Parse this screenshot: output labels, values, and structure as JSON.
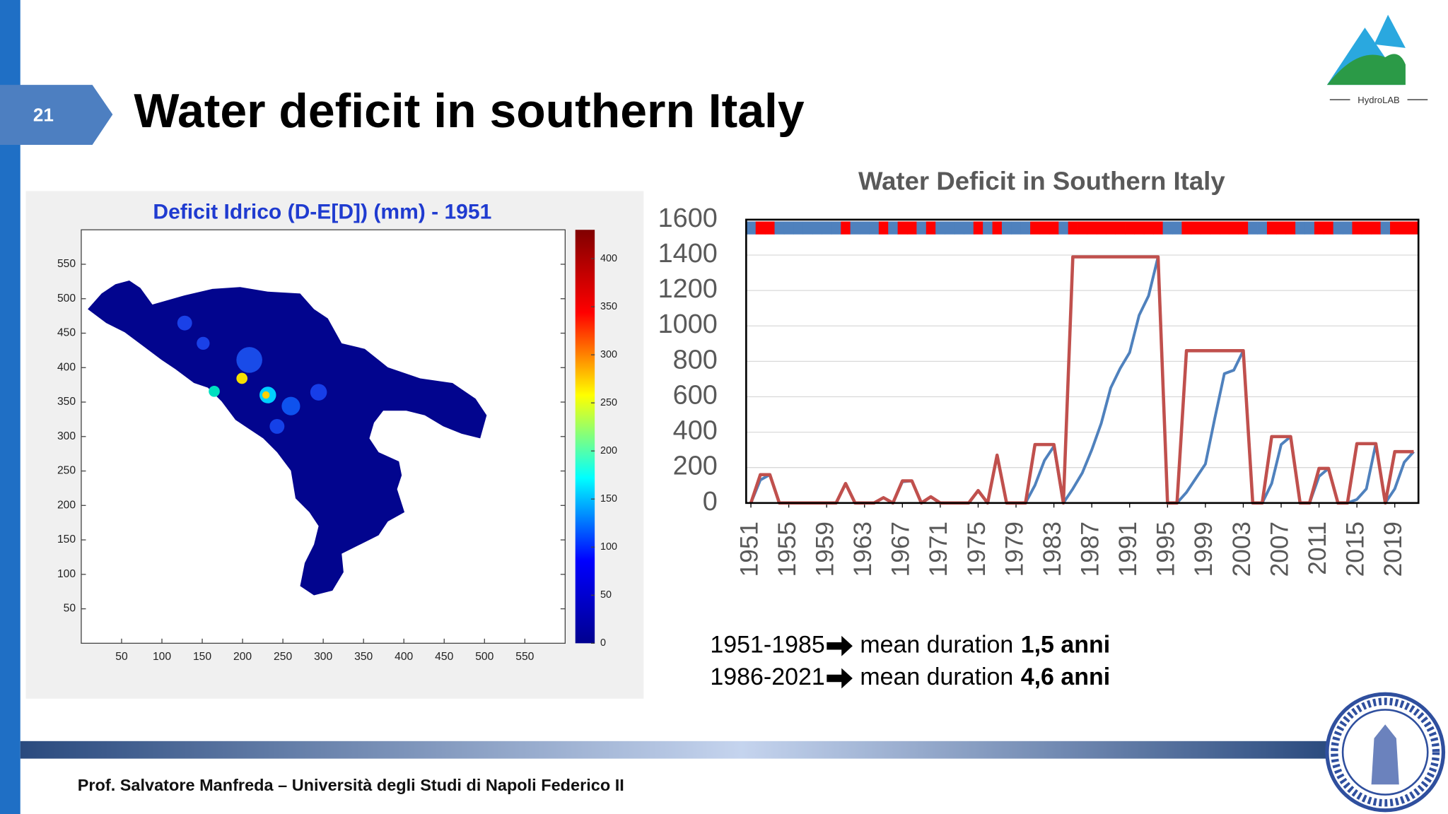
{
  "slide_number": "21",
  "title": "Water deficit in southern Italy",
  "logo": {
    "label": "HydroLAB"
  },
  "footer": "Prof. Salvatore Manfreda – Università degli Studi di Napoli Federico II",
  "notes": [
    {
      "period": "1951-1985",
      "text": "mean duration",
      "value": "1,5 anni"
    },
    {
      "period": "1986-2021",
      "text": "mean duration",
      "value": "4,6 anni"
    }
  ],
  "chart_data": [
    {
      "type": "heatmap",
      "title": "Deficit Idrico (D-E[D]) (mm) - 1951",
      "xlim": [
        0,
        600
      ],
      "ylim": [
        0,
        600
      ],
      "xticks": [
        50,
        100,
        150,
        200,
        250,
        300,
        350,
        400,
        450,
        500,
        550
      ],
      "yticks": [
        50,
        100,
        150,
        200,
        250,
        300,
        350,
        400,
        450,
        500,
        550
      ],
      "colorbar": {
        "lim": [
          0,
          430
        ],
        "ticks": [
          0,
          50,
          100,
          150,
          200,
          250,
          300,
          350,
          400
        ],
        "colormap": "jet"
      }
    },
    {
      "type": "line",
      "title": "Water Deficit in Southern Italy",
      "x": [
        1951,
        1952,
        1953,
        1954,
        1955,
        1956,
        1957,
        1958,
        1959,
        1960,
        1961,
        1962,
        1963,
        1964,
        1965,
        1966,
        1967,
        1968,
        1969,
        1970,
        1971,
        1972,
        1973,
        1974,
        1975,
        1976,
        1977,
        1978,
        1979,
        1980,
        1981,
        1982,
        1983,
        1984,
        1985,
        1986,
        1987,
        1988,
        1989,
        1990,
        1991,
        1992,
        1993,
        1994,
        1995,
        1996,
        1997,
        1998,
        1999,
        2000,
        2001,
        2002,
        2003,
        2004,
        2005,
        2006,
        2007,
        2008,
        2009,
        2010,
        2011,
        2012,
        2013,
        2014,
        2015,
        2016,
        2017,
        2018,
        2019,
        2020,
        2021
      ],
      "xlim": [
        1950.5,
        2021.5
      ],
      "xticks": [
        1951,
        1955,
        1959,
        1963,
        1967,
        1971,
        1975,
        1979,
        1983,
        1987,
        1991,
        1995,
        1999,
        2003,
        2007,
        2011,
        2015,
        2019
      ],
      "ylim": [
        0,
        1600
      ],
      "yticks": [
        0,
        200,
        400,
        600,
        800,
        1000,
        1200,
        1400,
        1600
      ],
      "grid": true,
      "series": [
        {
          "color": "#4f81bd",
          "values": [
            0,
            130,
            160,
            0,
            0,
            0,
            0,
            0,
            0,
            0,
            110,
            0,
            0,
            0,
            30,
            0,
            120,
            125,
            0,
            35,
            0,
            0,
            0,
            0,
            70,
            0,
            270,
            0,
            0,
            0,
            100,
            240,
            320,
            0,
            80,
            170,
            300,
            450,
            650,
            760,
            850,
            1060,
            1170,
            1390,
            0,
            0,
            60,
            140,
            220,
            480,
            730,
            750,
            860,
            0,
            0,
            110,
            330,
            375,
            0,
            0,
            150,
            195,
            0,
            0,
            20,
            80,
            335,
            0,
            80,
            230,
            290
          ]
        },
        {
          "color": "#c0504d",
          "values": [
            0,
            160,
            160,
            0,
            0,
            0,
            0,
            0,
            0,
            0,
            110,
            0,
            0,
            0,
            30,
            0,
            125,
            125,
            0,
            35,
            0,
            0,
            0,
            0,
            70,
            0,
            270,
            0,
            0,
            0,
            330,
            330,
            330,
            0,
            1390,
            1390,
            1390,
            1390,
            1390,
            1390,
            1390,
            1390,
            1390,
            1390,
            0,
            0,
            860,
            860,
            860,
            860,
            860,
            860,
            860,
            0,
            0,
            375,
            375,
            375,
            0,
            0,
            195,
            195,
            0,
            0,
            335,
            335,
            335,
            0,
            290,
            290,
            290
          ]
        }
      ],
      "status_band_colors": {
        "deficit": "#ff0000",
        "normal": "#4f81bd"
      }
    }
  ]
}
